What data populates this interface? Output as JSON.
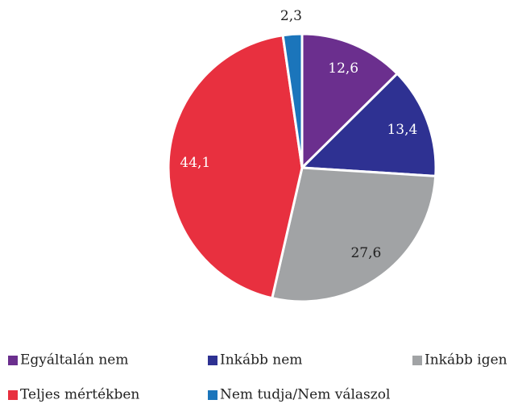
{
  "chart_data": {
    "type": "pie",
    "categories": [
      "Egyáltalán nem",
      "Inkább nem",
      "Inkább igen",
      "Teljes mértékben",
      "Nem tudja/Nem válaszol"
    ],
    "values": [
      12.6,
      13.4,
      27.6,
      44.1,
      2.3
    ],
    "value_labels": [
      "12,6",
      "13,4",
      "27,6",
      "44,1",
      "2,3"
    ],
    "colors": [
      "#6b2f8e",
      "#2e3192",
      "#a1a3a5",
      "#e8303f",
      "#1b75bb"
    ],
    "label_colors": [
      "#ffffff",
      "#ffffff",
      "#222222",
      "#ffffff",
      "#222222"
    ],
    "legend": "bottom"
  }
}
